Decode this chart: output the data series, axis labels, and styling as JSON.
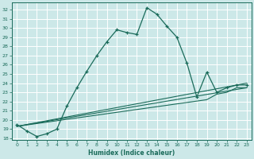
{
  "xlabel": "Humidex (Indice chaleur)",
  "bg_color": "#cce8e8",
  "grid_color": "#ffffff",
  "line_color": "#1a6b5a",
  "xlim": [
    -0.5,
    23.5
  ],
  "ylim": [
    17.8,
    32.8
  ],
  "xticks": [
    0,
    1,
    2,
    3,
    4,
    5,
    6,
    7,
    8,
    9,
    10,
    11,
    12,
    13,
    14,
    15,
    16,
    17,
    18,
    19,
    20,
    21,
    22,
    23
  ],
  "yticks": [
    18,
    19,
    20,
    21,
    22,
    23,
    24,
    25,
    26,
    27,
    28,
    29,
    30,
    31,
    32
  ],
  "main_x": [
    0,
    1,
    2,
    3,
    4,
    5,
    6,
    7,
    8,
    9,
    10,
    11,
    12,
    13,
    14,
    15,
    16,
    17,
    18,
    19,
    20,
    21,
    22,
    23
  ],
  "main_y": [
    19.5,
    18.8,
    18.2,
    18.5,
    19.0,
    21.5,
    23.5,
    25.3,
    27.0,
    28.5,
    29.8,
    29.5,
    29.3,
    32.2,
    31.5,
    30.2,
    29.0,
    26.2,
    22.5,
    25.2,
    23.0,
    23.5,
    23.8,
    23.8
  ],
  "line2_x": [
    0,
    23
  ],
  "line2_y": [
    19.3,
    23.5
  ],
  "line3_x": [
    0,
    23
  ],
  "line3_y": [
    19.3,
    24.0
  ],
  "line4_x": [
    0,
    19,
    20,
    21,
    22,
    23
  ],
  "line4_y": [
    19.3,
    22.2,
    22.8,
    23.0,
    23.5,
    23.5
  ]
}
